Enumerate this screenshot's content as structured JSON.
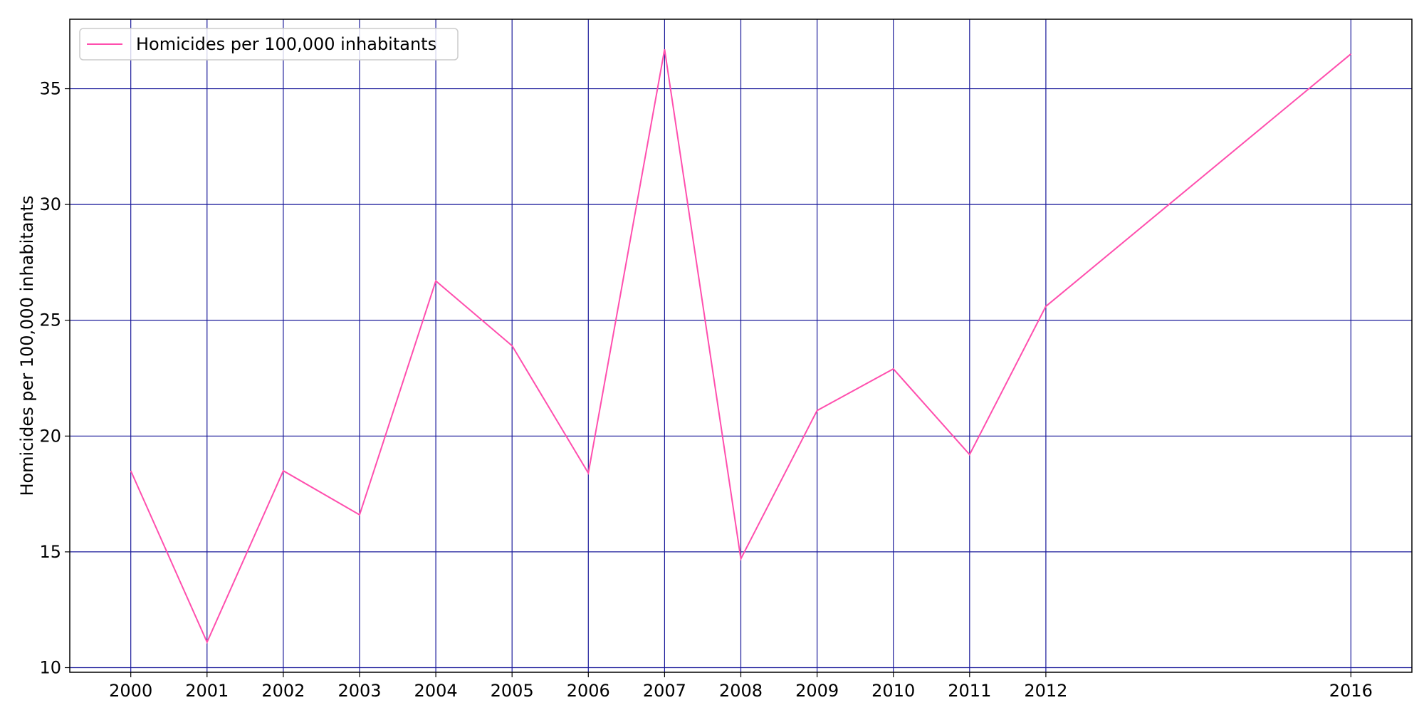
{
  "chart_data": {
    "type": "line",
    "title": "",
    "xlabel": "",
    "ylabel": "Homicides per 100,000 inhabitants",
    "x": [
      2000,
      2001,
      2002,
      2003,
      2004,
      2005,
      2006,
      2007,
      2008,
      2009,
      2010,
      2011,
      2012,
      2016
    ],
    "series": [
      {
        "name": "Homicides per 100,000 inhabitants",
        "color": "#ff4fae",
        "values": [
          18.5,
          11.1,
          18.5,
          16.6,
          26.7,
          23.9,
          18.4,
          36.7,
          14.7,
          21.1,
          22.9,
          19.2,
          25.6,
          36.5
        ]
      }
    ],
    "xticks": [
      "2000",
      "2001",
      "2002",
      "2003",
      "2004",
      "2005",
      "2006",
      "2007",
      "2008",
      "2009",
      "2010",
      "2011",
      "2012",
      "2016"
    ],
    "yticks": [
      "10",
      "15",
      "20",
      "25",
      "30",
      "35"
    ],
    "ytick_values": [
      10,
      15,
      20,
      25,
      30,
      35
    ],
    "xlim": [
      1999.2,
      2016.8
    ],
    "ylim": [
      9.8,
      38.0
    ],
    "grid": true,
    "grid_color": "#1a1a9a",
    "legend_position": "top-left"
  }
}
